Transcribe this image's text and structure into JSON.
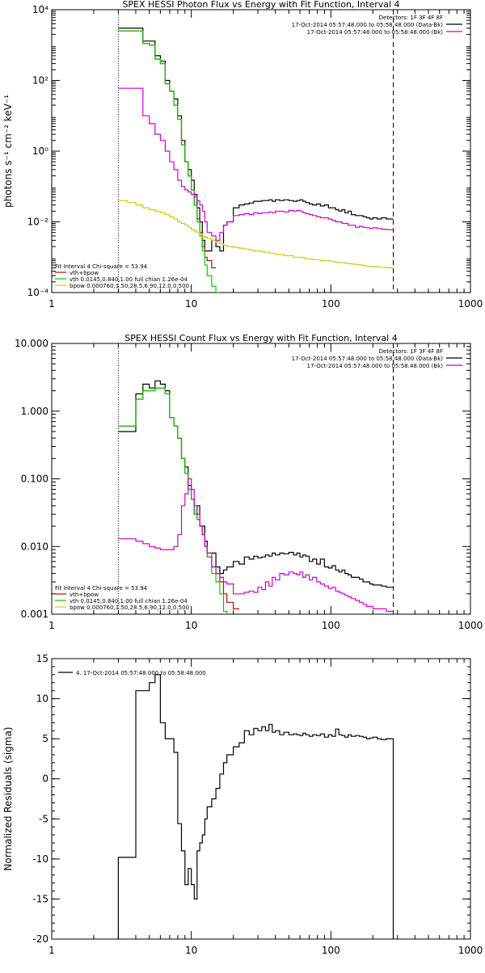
{
  "colors": {
    "data": "#000000",
    "total": "#cc0000",
    "vth": "#00cc00",
    "bpow": "#cccc00",
    "bkg": "#cc00cc",
    "axis": "#000000"
  },
  "chart_data": [
    {
      "type": "line",
      "title": "SPEX HESSI Photon Flux vs Energy with Fit Function, Interval 4",
      "xlabel": "",
      "ylabel": "photons s⁻¹ cm⁻² keV⁻¹",
      "xscale": "log",
      "yscale": "log",
      "xlim": [
        1,
        1000
      ],
      "ylim": [
        0.0001,
        10000
      ],
      "x_ticks": [
        1,
        10,
        100,
        1000
      ],
      "x_tick_labels": [
        "1",
        "10",
        "100",
        "1000"
      ],
      "y_ticks": [
        0.0001,
        0.01,
        1,
        100,
        10000
      ],
      "y_tick_labels": [
        "10⁻⁴",
        "10⁻²",
        "10⁰",
        "10²",
        "10⁴"
      ],
      "legend_tr": [
        {
          "text": "Detectors: 1F 3F 4F 8F",
          "color": "#000000"
        },
        {
          "text": "17-Oct-2014 05:57:48.000 to 05:58:48.000 (Data-Bk)",
          "color": "#000000"
        },
        {
          "text": "17-Oct-2014 05:57:48.000 to 05:58:48.000 (Bk)",
          "color": "#cc00cc"
        }
      ],
      "legend_bl": [
        {
          "text": "Fit Interval  4     Chi-square = 53.94",
          "color": "#000000"
        },
        {
          "text": "vth+bpow",
          "color": "#cc0000"
        },
        {
          "text": "vth 0.0145,0.840,1.00  full chian 1.26e-04",
          "color": "#00cc00"
        },
        {
          "text": "bpow 0.000760,1.50,28.5,6.90,12.0,0.500",
          "color": "#cccc00"
        }
      ],
      "vlines": [
        {
          "x": 3,
          "style": "dotted"
        },
        {
          "x": 280,
          "style": "dashed"
        }
      ],
      "edges": [
        3,
        3.5,
        4,
        4.5,
        5,
        5.5,
        6,
        6.5,
        7,
        7.5,
        8,
        8.5,
        9,
        9.5,
        10,
        10.5,
        11,
        11.5,
        12,
        12.5,
        13,
        14,
        15,
        16,
        17,
        18,
        20,
        22,
        24,
        26,
        28,
        30,
        32,
        34,
        36,
        38,
        40,
        43,
        46,
        50,
        54,
        57,
        60,
        63,
        66,
        70,
        74,
        79,
        84,
        90,
        96,
        102,
        108,
        114,
        120,
        126,
        133,
        140,
        150,
        160,
        170,
        180,
        190,
        200,
        215,
        230,
        250,
        265,
        280
      ],
      "series": [
        {
          "name": "data",
          "color": "#000000",
          "values": [
            3000,
            3000,
            3000,
            1300,
            1300,
            500,
            350,
            100,
            50,
            30,
            10,
            2,
            0.5,
            0.3,
            0.15,
            0.06,
            0.025,
            0.01,
            0.003,
            0.0015,
            0.0015,
            0.003,
            0.002,
            0.0015,
            0.008,
            0.01,
            0.025,
            0.03,
            0.032,
            0.034,
            0.038,
            0.038,
            0.04,
            0.04,
            0.042,
            0.038,
            0.042,
            0.04,
            0.042,
            0.04,
            0.038,
            0.04,
            0.042,
            0.038,
            0.035,
            0.032,
            0.03,
            0.032,
            0.028,
            0.03,
            0.025,
            0.025,
            0.022,
            0.02,
            0.022,
            0.018,
            0.02,
            0.016,
            0.015,
            0.015,
            0.014,
            0.013,
            0.012,
            0.013,
            0.012,
            0.013,
            0.012,
            0.012
          ]
        },
        {
          "name": "vth+bpow",
          "color": "#cc0000",
          "values": [
            2500,
            2500,
            2500,
            1100,
            1000,
            400,
            300,
            80,
            50,
            20,
            8,
            1.5,
            0.5,
            0.2,
            0.08,
            0.03,
            0.012,
            0.005,
            0.002,
            0.001,
            0.0008,
            0.0005
          ]
        },
        {
          "name": "vth",
          "color": "#00cc00",
          "values": [
            2500,
            2500,
            2500,
            1100,
            1000,
            400,
            300,
            80,
            50,
            20,
            8,
            1.5,
            0.5,
            0.2,
            0.08,
            0.03,
            0.01,
            0.004,
            0.0015,
            0.0006,
            0.0003,
            0.00015,
            0.0001
          ]
        },
        {
          "name": "bpow",
          "color": "#cccc00",
          "values": [
            0.04,
            0.035,
            0.03,
            0.025,
            0.022,
            0.02,
            0.018,
            0.016,
            0.014,
            0.012,
            0.01,
            0.009,
            0.008,
            0.007,
            0.006,
            0.0055,
            0.005,
            0.0045,
            0.004,
            0.0037,
            0.0034,
            0.003,
            0.0027,
            0.0024,
            0.0022,
            0.002,
            0.0019,
            0.0018,
            0.0017,
            0.0016,
            0.0015,
            0.0015,
            0.0014,
            0.0014,
            0.0013,
            0.0013,
            0.0012,
            0.0012,
            0.0011,
            0.0011,
            0.001,
            0.001,
            0.001,
            0.00095,
            0.0009,
            0.0009,
            0.00085,
            0.00085,
            0.0008,
            0.0008,
            0.00078,
            0.00075,
            0.00072,
            0.0007,
            0.0007,
            0.00068,
            0.00066,
            0.00064,
            0.00062,
            0.0006,
            0.00058,
            0.00056,
            0.00055,
            0.00054,
            0.00053,
            0.00052,
            0.0005,
            0.0005
          ]
        },
        {
          "name": "bk",
          "color": "#cc00cc",
          "values": [
            60,
            60,
            60,
            10,
            6,
            3,
            2,
            1,
            0.5,
            0.3,
            0.15,
            0.1,
            0.08,
            0.07,
            0.06,
            0.05,
            0.04,
            0.03,
            0.02,
            0.01,
            0.005,
            0.004,
            0.003,
            0.005,
            0.008,
            0.01,
            0.015,
            0.016,
            0.017,
            0.016,
            0.018,
            0.017,
            0.018,
            0.018,
            0.019,
            0.018,
            0.02,
            0.02,
            0.019,
            0.021,
            0.02,
            0.021,
            0.02,
            0.018,
            0.017,
            0.016,
            0.015,
            0.014,
            0.013,
            0.013,
            0.012,
            0.011,
            0.01,
            0.01,
            0.009,
            0.009,
            0.008,
            0.008,
            0.007,
            0.0075,
            0.007,
            0.0068,
            0.0065,
            0.0068,
            0.0065,
            0.0062,
            0.006,
            0.006
          ]
        }
      ]
    },
    {
      "type": "line",
      "title": "SPEX HESSI Count Flux vs Energy with Fit Function, Interval 4",
      "xlabel": "",
      "ylabel": "",
      "xscale": "log",
      "yscale": "log",
      "xlim": [
        1,
        1000
      ],
      "ylim": [
        0.001,
        10
      ],
      "x_ticks": [
        1,
        10,
        100,
        1000
      ],
      "x_tick_labels": [
        "1",
        "10",
        "100",
        "1000"
      ],
      "y_ticks": [
        0.001,
        0.01,
        0.1,
        1,
        10
      ],
      "y_tick_labels": [
        "0.001",
        "0.010",
        "0.100",
        "1.000",
        "10.000"
      ],
      "legend_tr": [
        {
          "text": "Detectors: 1F 3F 4F 8F",
          "color": "#000000"
        },
        {
          "text": "17-Oct-2014 05:57:48.000 to 05:58:48.000 (Data-Bk)",
          "color": "#000000"
        },
        {
          "text": "17-Oct-2014 05:57:48.000 to 05:58:48.000 (Bk)",
          "color": "#cc00cc"
        }
      ],
      "legend_bl": [
        {
          "text": "Fit Interval  4     Chi-square = 53.94",
          "color": "#000000"
        },
        {
          "text": "vth+bpow",
          "color": "#cc0000"
        },
        {
          "text": "vth 0.0145,0.840,1.00  full chian 1.26e-04",
          "color": "#00cc00"
        },
        {
          "text": "bpow 0.000760,1.50,28.5,6.90,12.0,0.500",
          "color": "#cccc00"
        }
      ],
      "vlines": [
        {
          "x": 3,
          "style": "dotted"
        },
        {
          "x": 280,
          "style": "dashed"
        }
      ],
      "edges": [
        3,
        3.5,
        4,
        4.5,
        5,
        5.5,
        6,
        6.5,
        7,
        7.5,
        8,
        8.5,
        9,
        9.5,
        10,
        10.5,
        11,
        11.5,
        12,
        12.5,
        13,
        14,
        15,
        16,
        17,
        18,
        20,
        22,
        24,
        26,
        28,
        30,
        32,
        34,
        36,
        38,
        40,
        43,
        46,
        50,
        54,
        57,
        60,
        63,
        66,
        70,
        74,
        79,
        84,
        90,
        96,
        102,
        108,
        114,
        120,
        126,
        133,
        140,
        150,
        160,
        170,
        180,
        190,
        200,
        215,
        230,
        250,
        265,
        280
      ],
      "series": [
        {
          "name": "data",
          "color": "#000000",
          "values": [
            0.5,
            0.5,
            1.8,
            2.5,
            2.2,
            2.8,
            2.5,
            2.0,
            0.8,
            0.6,
            0.4,
            0.2,
            0.15,
            0.08,
            0.05,
            0.03,
            0.04,
            0.02,
            0.02,
            0.012,
            0.008,
            0.008,
            0.005,
            0.004,
            0.0045,
            0.005,
            0.006,
            0.0055,
            0.007,
            0.0065,
            0.0072,
            0.0068,
            0.007,
            0.0075,
            0.0072,
            0.008,
            0.0075,
            0.008,
            0.0078,
            0.0082,
            0.0075,
            0.008,
            0.007,
            0.0075,
            0.0072,
            0.006,
            0.0065,
            0.0055,
            0.0065,
            0.005,
            0.0048,
            0.0052,
            0.0045,
            0.0042,
            0.0045,
            0.004,
            0.0038,
            0.0035,
            0.0035,
            0.0033,
            0.003,
            0.003,
            0.0028,
            0.0027,
            0.0027,
            0.0026,
            0.0025,
            0.0025
          ]
        },
        {
          "name": "vth+bpow",
          "color": "#cc0000",
          "values": [
            0.6,
            0.6,
            1.5,
            2.0,
            2.0,
            2.2,
            2.2,
            1.8,
            0.8,
            0.6,
            0.4,
            0.2,
            0.12,
            0.07,
            0.05,
            0.03,
            0.025,
            0.02,
            0.015,
            0.01,
            0.007,
            0.005,
            0.004,
            0.003,
            0.002,
            0.0015,
            0.0012
          ]
        },
        {
          "name": "vth",
          "color": "#00cc00",
          "values": [
            0.6,
            0.6,
            1.5,
            2.0,
            2.0,
            2.2,
            2.2,
            1.8,
            0.8,
            0.6,
            0.4,
            0.2,
            0.12,
            0.07,
            0.05,
            0.03,
            0.025,
            0.02,
            0.015,
            0.01,
            0.007,
            0.004,
            0.003,
            0.002,
            0.0011
          ]
        },
        {
          "name": "bk",
          "color": "#cc00cc",
          "values": [
            0.013,
            0.013,
            0.012,
            0.011,
            0.01,
            0.0095,
            0.009,
            0.009,
            0.009,
            0.01,
            0.015,
            0.04,
            0.06,
            0.1,
            0.07,
            0.04,
            0.03,
            0.02,
            0.015,
            0.01,
            0.008,
            0.005,
            0.004,
            0.0035,
            0.003,
            0.0028,
            0.002,
            0.002,
            0.0021,
            0.0022,
            0.0021,
            0.0025,
            0.0023,
            0.003,
            0.0026,
            0.0035,
            0.0032,
            0.004,
            0.0038,
            0.0042,
            0.004,
            0.0038,
            0.0042,
            0.0035,
            0.0038,
            0.0032,
            0.0035,
            0.003,
            0.0028,
            0.0026,
            0.0024,
            0.0025,
            0.0022,
            0.0021,
            0.002,
            0.0019,
            0.0018,
            0.0017,
            0.0016,
            0.0015,
            0.0014,
            0.0013,
            0.0013,
            0.0012,
            0.0012,
            0.0012,
            0.0011,
            0.0011
          ]
        }
      ]
    },
    {
      "type": "line",
      "title": "",
      "xlabel": "",
      "ylabel": "Normalized Residuals (sigma)",
      "xscale": "log",
      "yscale": "linear",
      "xlim": [
        1,
        1000
      ],
      "ylim": [
        -20,
        15
      ],
      "x_ticks": [
        1,
        10,
        100,
        1000
      ],
      "x_tick_labels": [
        "1",
        "10",
        "100",
        "1000"
      ],
      "y_ticks": [
        -20,
        -15,
        -10,
        -5,
        0,
        5,
        10,
        15
      ],
      "y_tick_labels": [
        "-20",
        "-15",
        "-10",
        "-5",
        "0",
        "5",
        "10",
        "15"
      ],
      "legend_tr": [],
      "legend_bl": [],
      "legend_tl": [
        {
          "text": "4. 17-Oct-2014 05:57:48.000 to 05:58:48.000",
          "color": "#000000"
        }
      ],
      "vlines": [],
      "drop_to_bottom": true,
      "edges": [
        3,
        3.5,
        4,
        4.5,
        5,
        5.5,
        6,
        6.5,
        7,
        7.5,
        8,
        8.5,
        9,
        9.5,
        10,
        10.5,
        11,
        11.5,
        12,
        12.5,
        13,
        14,
        15,
        16,
        17,
        18,
        20,
        22,
        24,
        26,
        28,
        30,
        32,
        34,
        36,
        38,
        40,
        43,
        46,
        50,
        54,
        57,
        60,
        63,
        66,
        70,
        74,
        79,
        84,
        90,
        96,
        102,
        108,
        114,
        120,
        126,
        133,
        140,
        150,
        160,
        170,
        180,
        190,
        200,
        215,
        230,
        250,
        265,
        280
      ],
      "series": [
        {
          "name": "residuals",
          "color": "#000000",
          "values": [
            -9.8,
            -9.8,
            11,
            11,
            12,
            13,
            7,
            5,
            5,
            3.3,
            -5.6,
            -9,
            -13.2,
            -11.2,
            -13.2,
            -15,
            -9,
            -8,
            -7,
            -5,
            -3.5,
            -2.5,
            -1.2,
            0.6,
            2,
            3,
            4,
            4.5,
            6,
            5.5,
            6.3,
            6,
            6.5,
            6,
            6.8,
            5.8,
            6,
            5.5,
            5.8,
            5.5,
            5.6,
            5.5,
            5.4,
            5.7,
            5.5,
            5.3,
            5.5,
            5.4,
            5.6,
            5.2,
            5.5,
            5.3,
            6.2,
            5.5,
            5.4,
            5.2,
            5.5,
            5.3,
            5.4,
            5.3,
            5.2,
            5.0,
            5.1,
            5.2,
            5.0,
            4.9,
            5.0,
            5.0
          ]
        }
      ]
    }
  ]
}
